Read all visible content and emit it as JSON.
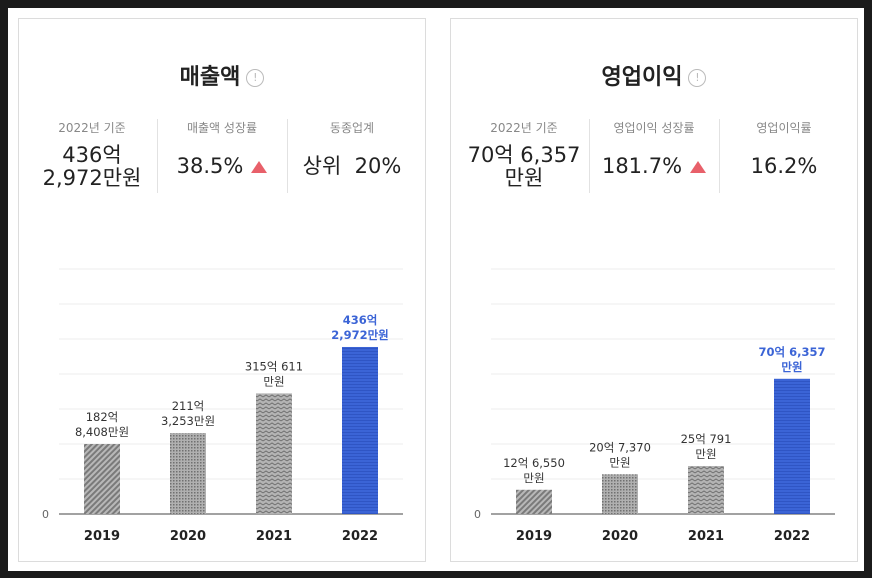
{
  "colors": {
    "highlight_bar": "#3b64d6",
    "gray_bar": "#9a9a9a",
    "up_arrow": "#e8606a"
  },
  "cards": [
    {
      "title": "매출액",
      "info_icon": "info-icon",
      "stats": [
        {
          "label": "2022년 기준",
          "value_line1": "436억",
          "value_line2": "2,972만원"
        },
        {
          "label": "매출액 성장률",
          "value": "38.5%",
          "trend": "up"
        },
        {
          "label": "동종업계",
          "value": "상위  20%"
        }
      ]
    },
    {
      "title": "영업이익",
      "info_icon": "info-icon",
      "stats": [
        {
          "label": "2022년 기준",
          "value_line1": "70억 6,357",
          "value_line2": "만원"
        },
        {
          "label": "영업이익 성장률",
          "value": "181.7%",
          "trend": "up"
        },
        {
          "label": "영업이익률",
          "value": "16.2%"
        }
      ]
    }
  ],
  "chart_data": [
    {
      "type": "bar",
      "categories": [
        "2019",
        "2020",
        "2021",
        "2022"
      ],
      "values": [
        182.8408,
        211.3253,
        315.0611,
        436.2972
      ],
      "value_labels": [
        [
          "182억",
          "8,408만원"
        ],
        [
          "211억",
          "3,253만원"
        ],
        [
          "315억 611",
          "만원"
        ],
        [
          "436억",
          "2,972만원"
        ]
      ],
      "highlight_index": 3,
      "y_tick_label": "0",
      "ylim": [
        0,
        640
      ],
      "grid": true
    },
    {
      "type": "bar",
      "categories": [
        "2019",
        "2020",
        "2021",
        "2022"
      ],
      "values": [
        12.655,
        20.737,
        25.0791,
        70.6357
      ],
      "value_labels": [
        [
          "12억 6,550",
          "만원"
        ],
        [
          "20억 7,370",
          "만원"
        ],
        [
          "25억 791",
          "만원"
        ],
        [
          "70억 6,357",
          "만원"
        ]
      ],
      "highlight_index": 3,
      "y_tick_label": "0",
      "ylim": [
        0,
        128
      ],
      "grid": true
    }
  ]
}
